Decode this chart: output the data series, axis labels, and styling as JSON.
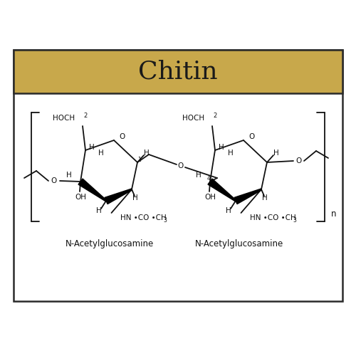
{
  "title": "Chitin",
  "title_bg_color": "#C8A84B",
  "title_text_color": "#1a1a1a",
  "border_color": "#2a2a2a",
  "bg_color": "#ffffff",
  "outer_bg": "#ffffff",
  "label1": "N-Acetylglucosamine",
  "label2": "N-Acetylglucosamine",
  "title_fontsize": 26,
  "label_fontsize": 8.5,
  "bond_color": "#111111"
}
